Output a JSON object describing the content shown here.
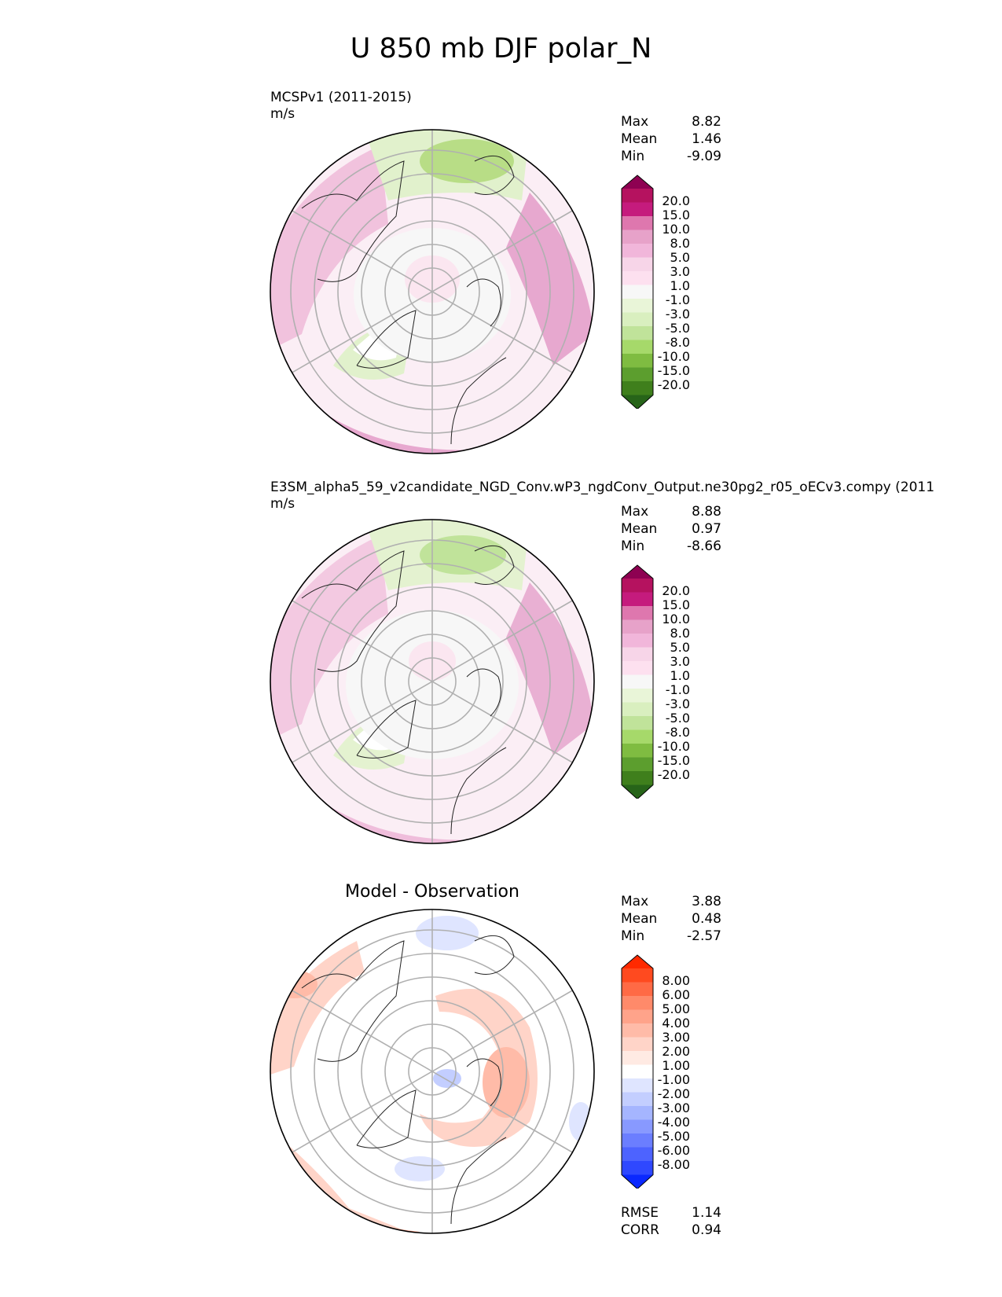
{
  "figure": {
    "title": "U 850 mb DJF polar_N"
  },
  "panels": [
    {
      "title_line1": "MCSPv1 (2011-2015)",
      "units": "m/s",
      "stats": [
        {
          "label": "Max",
          "value": "8.82"
        },
        {
          "label": "Mean",
          "value": "1.46"
        },
        {
          "label": "Min",
          "value": "-9.09"
        }
      ],
      "colorbar": {
        "ticks": [
          "20.0",
          "15.0",
          "10.0",
          "8.0",
          "5.0",
          "3.0",
          "1.0",
          "-1.0",
          "-3.0",
          "-5.0",
          "-8.0",
          "-10.0",
          "-15.0",
          "-20.0"
        ],
        "colors": [
          "#8e0152",
          "#b5125f",
          "#c51b7d",
          "#de77ae",
          "#e7a2c9",
          "#f1b6da",
          "#f7d5e8",
          "#fde0ef",
          "#f7f7f7",
          "#e9f5d8",
          "#d9efbf",
          "#c0e39a",
          "#a6d96a",
          "#7fbc41",
          "#5c9e2e",
          "#3f7f1c",
          "#276419"
        ]
      }
    },
    {
      "title_line1": "E3SM_alpha5_59_v2candidate_NGD_Conv.wP3_ngdConv_Output.ne30pg2_r05_oECv3.compy (2011",
      "units": "m/s",
      "stats": [
        {
          "label": "Max",
          "value": "8.88"
        },
        {
          "label": "Mean",
          "value": "0.97"
        },
        {
          "label": "Min",
          "value": "-8.66"
        }
      ],
      "colorbar": {
        "ticks": [
          "20.0",
          "15.0",
          "10.0",
          "8.0",
          "5.0",
          "3.0",
          "1.0",
          "-1.0",
          "-3.0",
          "-5.0",
          "-8.0",
          "-10.0",
          "-15.0",
          "-20.0"
        ],
        "colors": [
          "#8e0152",
          "#b5125f",
          "#c51b7d",
          "#de77ae",
          "#e7a2c9",
          "#f1b6da",
          "#f7d5e8",
          "#fde0ef",
          "#f7f7f7",
          "#e9f5d8",
          "#d9efbf",
          "#c0e39a",
          "#a6d96a",
          "#7fbc41",
          "#5c9e2e",
          "#3f7f1c",
          "#276419"
        ]
      }
    },
    {
      "title_center": "Model - Observation",
      "stats": [
        {
          "label": "Max",
          "value": "3.88"
        },
        {
          "label": "Mean",
          "value": "0.48"
        },
        {
          "label": "Min",
          "value": "-2.57"
        }
      ],
      "colorbar": {
        "ticks": [
          "8.00",
          "6.00",
          "5.00",
          "4.00",
          "3.00",
          "2.00",
          "1.00",
          "-1.00",
          "-2.00",
          "-3.00",
          "-4.00",
          "-5.00",
          "-6.00",
          "-8.00"
        ],
        "colors": [
          "#ff2a00",
          "#ff4a1f",
          "#ff6a45",
          "#ff8a6a",
          "#ffa38a",
          "#ffbba8",
          "#ffd4c8",
          "#ffeae3",
          "#ffffff",
          "#dfe5ff",
          "#c3ceff",
          "#a5b5ff",
          "#8899ff",
          "#6b7eff",
          "#4d63ff",
          "#2f48ff",
          "#0a28ff"
        ]
      },
      "metrics": [
        {
          "label": "RMSE",
          "value": "1.14"
        },
        {
          "label": "CORR",
          "value": "0.94"
        }
      ]
    }
  ]
}
